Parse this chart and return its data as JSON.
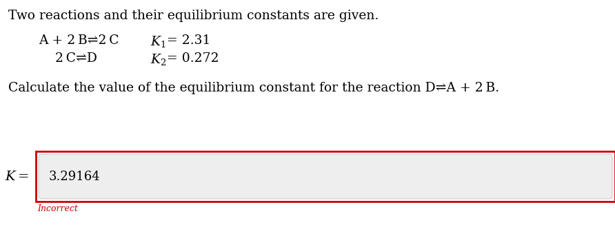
{
  "bg_color": "#ffffff",
  "intro_text": "Two reactions and their equilibrium constants are given.",
  "r1_left": "A + 2 B⇌2 C",
  "r2_left": "2 C⇌D",
  "k1_val": "= 2.31",
  "k2_val": "= 0.272",
  "question_text": "Calculate the value of the equilibrium constant for the reaction D⇌A + 2 B.",
  "answer_value": "3.29164",
  "incorrect_text": "Incorrect",
  "incorrect_color": "#cc0000",
  "box_border_color": "#cc0000",
  "input_bg_color": "#eeeeee",
  "input_border_color": "#cccccc",
  "font_size_body": 13.5,
  "font_size_reaction": 13.5,
  "font_size_answer": 13,
  "font_size_k_label": 14,
  "font_size_incorrect": 9
}
